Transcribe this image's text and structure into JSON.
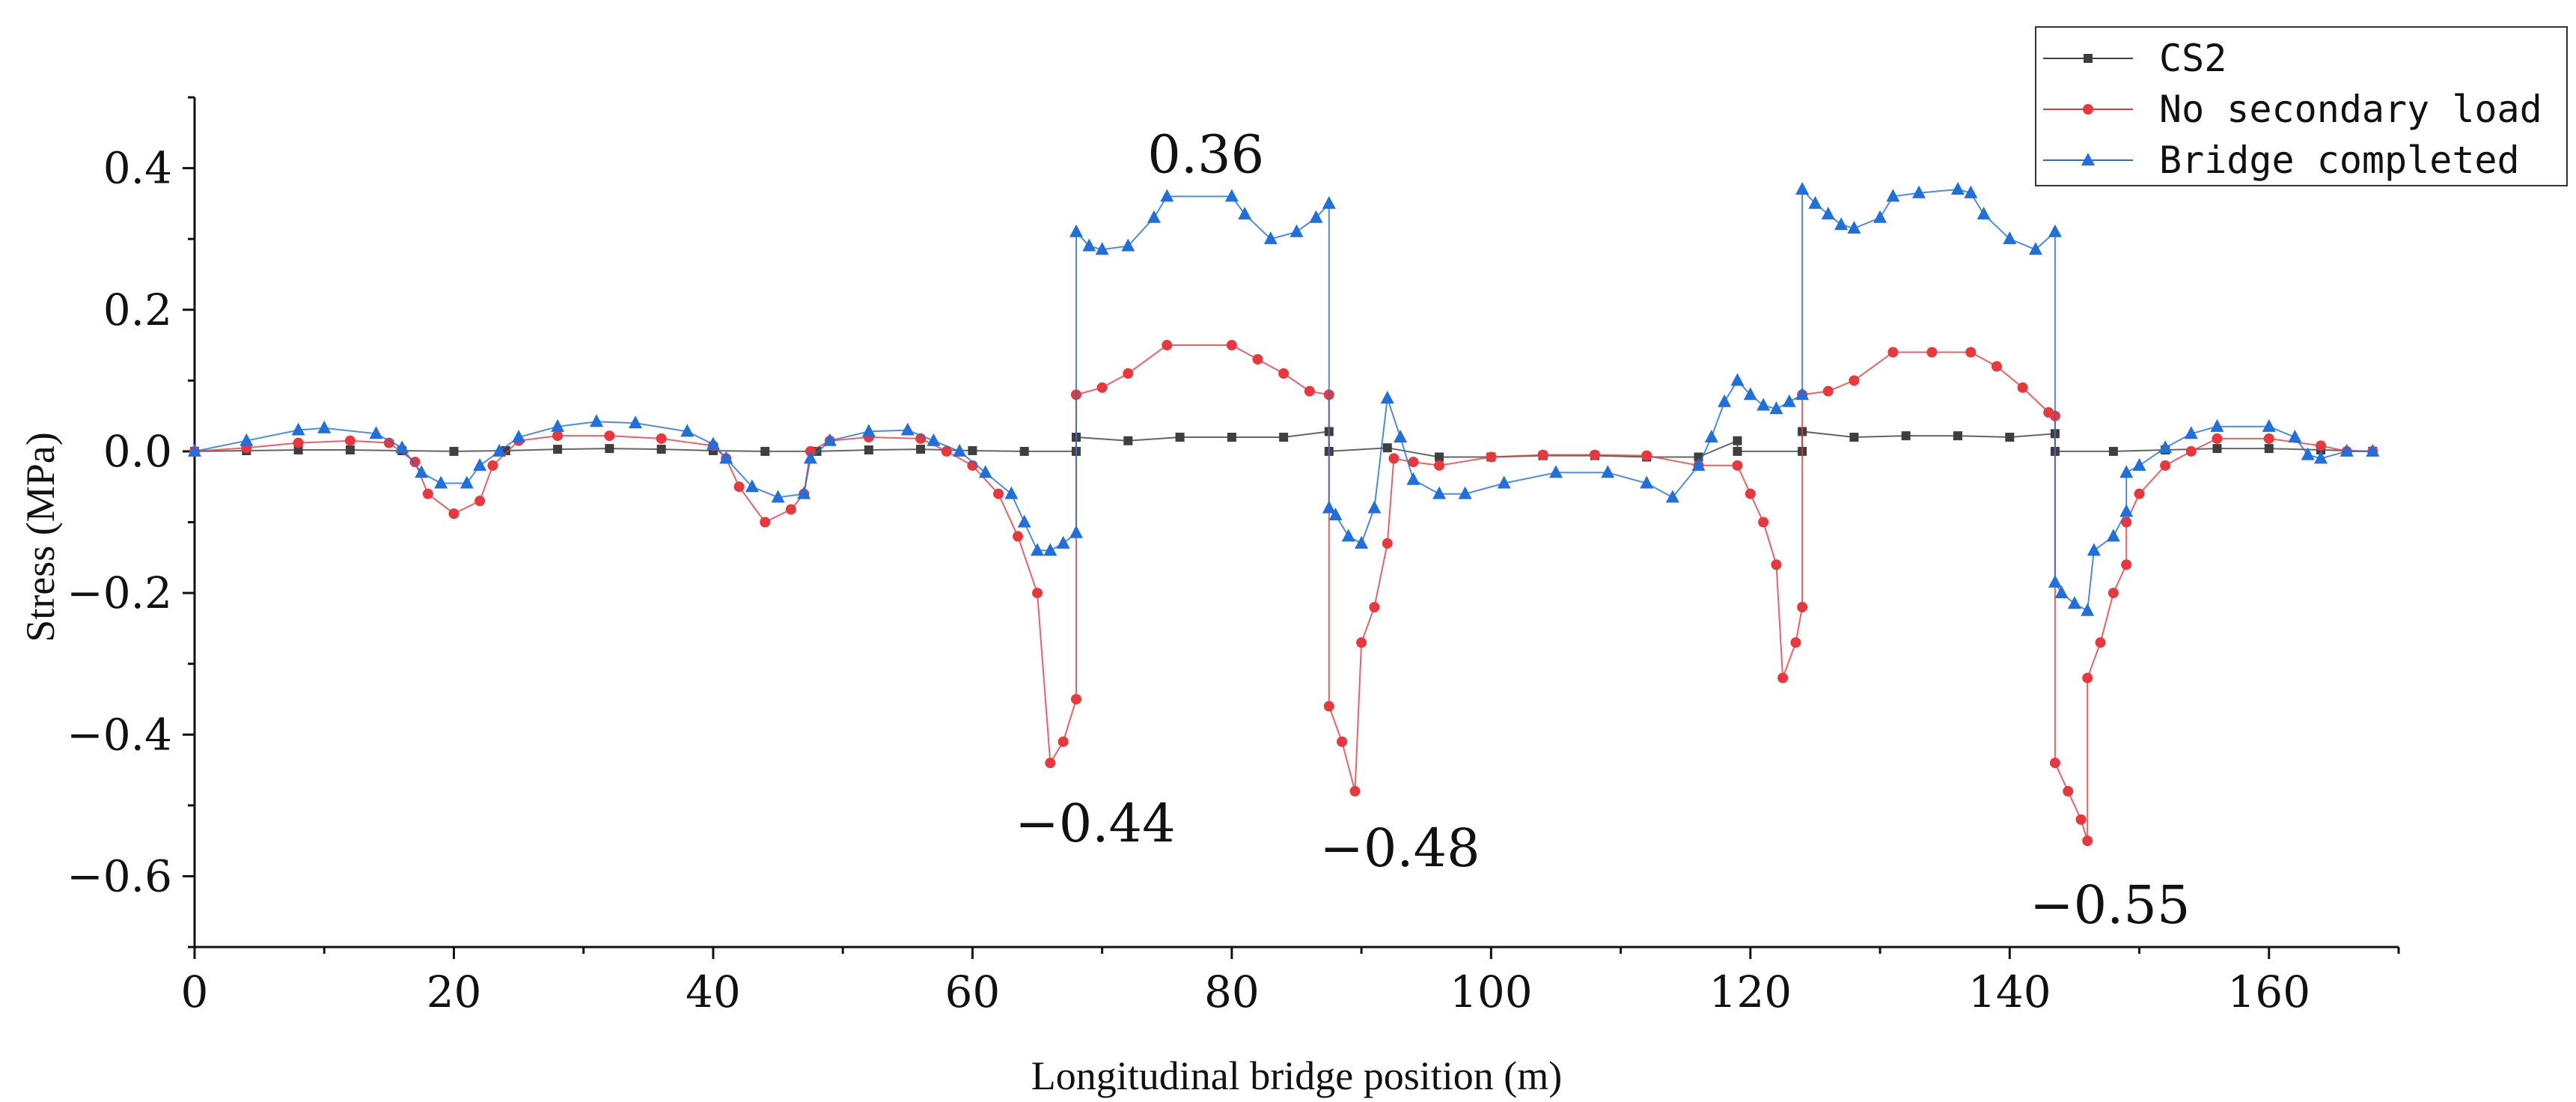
{
  "chart_data": {
    "type": "line",
    "title": "",
    "xlabel": "Longitudinal bridge position (m)",
    "ylabel": "Stress (MPa)",
    "xlim": [
      0,
      170
    ],
    "ylim": [
      -0.7,
      0.5
    ],
    "x_ticks": [
      0,
      20,
      40,
      60,
      80,
      100,
      120,
      140,
      160
    ],
    "x_tick_labels": [
      "0",
      "20",
      "40",
      "60",
      "80",
      "100",
      "120",
      "140",
      "160"
    ],
    "y_ticks": [
      0.4,
      0.2,
      0.0,
      -0.2,
      -0.4,
      -0.6
    ],
    "y_tick_labels": [
      "0.4",
      "0.2",
      "0.0",
      "−0.2",
      "−0.4",
      "−0.6"
    ],
    "grid": false,
    "legend_position": "top-right",
    "series": [
      {
        "name": "CS2",
        "color": "#3f3f3f",
        "marker": "square",
        "points": [
          [
            0,
            0
          ],
          [
            4,
            0.001
          ],
          [
            8,
            0.002
          ],
          [
            12,
            0.002
          ],
          [
            16,
            0.001
          ],
          [
            20,
            0.0
          ],
          [
            24,
            0.001
          ],
          [
            28,
            0.003
          ],
          [
            32,
            0.004
          ],
          [
            36,
            0.003
          ],
          [
            40,
            0.001
          ],
          [
            44,
            0.0
          ],
          [
            48,
            0.0
          ],
          [
            52,
            0.002
          ],
          [
            56,
            0.003
          ],
          [
            60,
            0.001
          ],
          [
            64,
            0.0
          ],
          [
            68,
            0.0
          ],
          [
            68,
            0.02
          ],
          [
            72,
            0.015
          ],
          [
            76,
            0.02
          ],
          [
            80,
            0.02
          ],
          [
            84,
            0.02
          ],
          [
            87.5,
            0.028
          ],
          [
            87.5,
            0.0
          ],
          [
            92,
            0.005
          ],
          [
            96,
            -0.008
          ],
          [
            100,
            -0.008
          ],
          [
            104,
            -0.006
          ],
          [
            108,
            -0.006
          ],
          [
            112,
            -0.008
          ],
          [
            116,
            -0.008
          ],
          [
            119,
            0.015
          ],
          [
            119,
            0.0
          ],
          [
            124,
            0.0
          ],
          [
            124,
            0.028
          ],
          [
            128,
            0.02
          ],
          [
            132,
            0.022
          ],
          [
            136,
            0.022
          ],
          [
            140,
            0.02
          ],
          [
            143.5,
            0.025
          ],
          [
            143.5,
            0.0
          ],
          [
            148,
            0.0
          ],
          [
            152,
            0.002
          ],
          [
            156,
            0.004
          ],
          [
            160,
            0.004
          ],
          [
            164,
            0.002
          ],
          [
            168,
            0.0
          ]
        ]
      },
      {
        "name": "No secondary load",
        "color": "#e8383d",
        "marker": "circle",
        "points": [
          [
            0,
            0
          ],
          [
            4,
            0.005
          ],
          [
            8,
            0.012
          ],
          [
            12,
            0.015
          ],
          [
            15,
            0.012
          ],
          [
            17,
            -0.015
          ],
          [
            18,
            -0.06
          ],
          [
            20,
            -0.088
          ],
          [
            22,
            -0.07
          ],
          [
            23,
            -0.02
          ],
          [
            25,
            0.015
          ],
          [
            28,
            0.022
          ],
          [
            32,
            0.022
          ],
          [
            36,
            0.018
          ],
          [
            40,
            0.008
          ],
          [
            41,
            -0.01
          ],
          [
            42,
            -0.05
          ],
          [
            44,
            -0.1
          ],
          [
            46,
            -0.082
          ],
          [
            47,
            -0.06
          ],
          [
            47.5,
            0.0
          ],
          [
            49,
            0.015
          ],
          [
            52,
            0.02
          ],
          [
            56,
            0.018
          ],
          [
            58,
            0.0
          ],
          [
            60,
            -0.02
          ],
          [
            62,
            -0.06
          ],
          [
            63.5,
            -0.12
          ],
          [
            65,
            -0.2
          ],
          [
            66,
            -0.44
          ],
          [
            67,
            -0.41
          ],
          [
            68,
            -0.35
          ],
          [
            68,
            0.08
          ],
          [
            70,
            0.09
          ],
          [
            72,
            0.11
          ],
          [
            75,
            0.15
          ],
          [
            80,
            0.15
          ],
          [
            82,
            0.13
          ],
          [
            84,
            0.11
          ],
          [
            86,
            0.085
          ],
          [
            87.5,
            0.08
          ],
          [
            87.5,
            -0.36
          ],
          [
            88.5,
            -0.41
          ],
          [
            89.5,
            -0.48
          ],
          [
            90,
            -0.27
          ],
          [
            91,
            -0.22
          ],
          [
            92,
            -0.13
          ],
          [
            92.5,
            -0.01
          ],
          [
            94,
            -0.015
          ],
          [
            96,
            -0.02
          ],
          [
            100,
            -0.008
          ],
          [
            104,
            -0.005
          ],
          [
            108,
            -0.005
          ],
          [
            112,
            -0.006
          ],
          [
            116,
            -0.02
          ],
          [
            119,
            -0.02
          ],
          [
            120,
            -0.06
          ],
          [
            121,
            -0.1
          ],
          [
            122,
            -0.16
          ],
          [
            122.5,
            -0.32
          ],
          [
            123.5,
            -0.27
          ],
          [
            124,
            -0.22
          ],
          [
            124,
            0.08
          ],
          [
            126,
            0.085
          ],
          [
            128,
            0.1
          ],
          [
            131,
            0.14
          ],
          [
            134,
            0.14
          ],
          [
            137,
            0.14
          ],
          [
            139,
            0.12
          ],
          [
            141,
            0.09
          ],
          [
            143,
            0.055
          ],
          [
            143.5,
            0.05
          ],
          [
            143.5,
            -0.44
          ],
          [
            144.5,
            -0.48
          ],
          [
            145.5,
            -0.52
          ],
          [
            146,
            -0.55
          ],
          [
            146,
            -0.32
          ],
          [
            147,
            -0.27
          ],
          [
            148,
            -0.2
          ],
          [
            149,
            -0.16
          ],
          [
            149,
            -0.1
          ],
          [
            150,
            -0.06
          ],
          [
            152,
            -0.02
          ],
          [
            154,
            0.0
          ],
          [
            156,
            0.018
          ],
          [
            160,
            0.018
          ],
          [
            164,
            0.008
          ],
          [
            166,
            0.0
          ],
          [
            168,
            0.0
          ]
        ]
      },
      {
        "name": "Bridge completed",
        "color": "#1f6fdc",
        "marker": "triangle",
        "points": [
          [
            0,
            0
          ],
          [
            4,
            0.015
          ],
          [
            8,
            0.03
          ],
          [
            10,
            0.033
          ],
          [
            14,
            0.025
          ],
          [
            16,
            0.005
          ],
          [
            17.5,
            -0.03
          ],
          [
            19,
            -0.045
          ],
          [
            21,
            -0.045
          ],
          [
            22,
            -0.02
          ],
          [
            23.5,
            0.0
          ],
          [
            25,
            0.02
          ],
          [
            28,
            0.035
          ],
          [
            31,
            0.042
          ],
          [
            34,
            0.04
          ],
          [
            38,
            0.028
          ],
          [
            40,
            0.01
          ],
          [
            41,
            -0.01
          ],
          [
            43,
            -0.05
          ],
          [
            45,
            -0.065
          ],
          [
            47,
            -0.06
          ],
          [
            47.5,
            -0.01
          ],
          [
            49,
            0.015
          ],
          [
            52,
            0.028
          ],
          [
            55,
            0.03
          ],
          [
            57,
            0.015
          ],
          [
            59,
            0.0
          ],
          [
            61,
            -0.03
          ],
          [
            63,
            -0.06
          ],
          [
            64,
            -0.1
          ],
          [
            65,
            -0.14
          ],
          [
            66,
            -0.14
          ],
          [
            67,
            -0.13
          ],
          [
            68,
            -0.115
          ],
          [
            68,
            0.31
          ],
          [
            69,
            0.29
          ],
          [
            70,
            0.285
          ],
          [
            72,
            0.29
          ],
          [
            74,
            0.33
          ],
          [
            75,
            0.36
          ],
          [
            80,
            0.36
          ],
          [
            81,
            0.335
          ],
          [
            83,
            0.3
          ],
          [
            85,
            0.31
          ],
          [
            86.5,
            0.33
          ],
          [
            87.5,
            0.35
          ],
          [
            87.5,
            -0.08
          ],
          [
            88,
            -0.09
          ],
          [
            89,
            -0.12
          ],
          [
            90,
            -0.13
          ],
          [
            91,
            -0.08
          ],
          [
            92,
            0.075
          ],
          [
            93,
            0.02
          ],
          [
            94,
            -0.04
          ],
          [
            96,
            -0.06
          ],
          [
            98,
            -0.06
          ],
          [
            101,
            -0.045
          ],
          [
            105,
            -0.03
          ],
          [
            109,
            -0.03
          ],
          [
            112,
            -0.045
          ],
          [
            114,
            -0.065
          ],
          [
            116,
            -0.02
          ],
          [
            117,
            0.02
          ],
          [
            118,
            0.07
          ],
          [
            119,
            0.1
          ],
          [
            120,
            0.08
          ],
          [
            121,
            0.065
          ],
          [
            122,
            0.06
          ],
          [
            123,
            0.07
          ],
          [
            124,
            0.08
          ],
          [
            124,
            0.37
          ],
          [
            125,
            0.35
          ],
          [
            126,
            0.335
          ],
          [
            127,
            0.32
          ],
          [
            128,
            0.315
          ],
          [
            130,
            0.33
          ],
          [
            131,
            0.36
          ],
          [
            133,
            0.365
          ],
          [
            136,
            0.37
          ],
          [
            137,
            0.365
          ],
          [
            138,
            0.335
          ],
          [
            140,
            0.3
          ],
          [
            142,
            0.285
          ],
          [
            143.5,
            0.31
          ],
          [
            143.5,
            -0.185
          ],
          [
            144,
            -0.2
          ],
          [
            145,
            -0.215
          ],
          [
            146,
            -0.225
          ],
          [
            146.5,
            -0.14
          ],
          [
            148,
            -0.12
          ],
          [
            149,
            -0.085
          ],
          [
            149,
            -0.03
          ],
          [
            150,
            -0.02
          ],
          [
            152,
            0.005
          ],
          [
            154,
            0.025
          ],
          [
            156,
            0.035
          ],
          [
            160,
            0.035
          ],
          [
            162,
            0.02
          ],
          [
            163,
            -0.005
          ],
          [
            164,
            -0.01
          ],
          [
            166,
            0.0
          ],
          [
            168,
            0.0
          ]
        ]
      }
    ],
    "annotations": [
      {
        "text": "0.36",
        "x": 78,
        "y": 0.36
      },
      {
        "text": "−0.44",
        "x": 66,
        "y": -0.44
      },
      {
        "text": "−0.48",
        "x": 89.5,
        "y": -0.48
      },
      {
        "text": "−0.55",
        "x": 146,
        "y": -0.55
      }
    ]
  }
}
